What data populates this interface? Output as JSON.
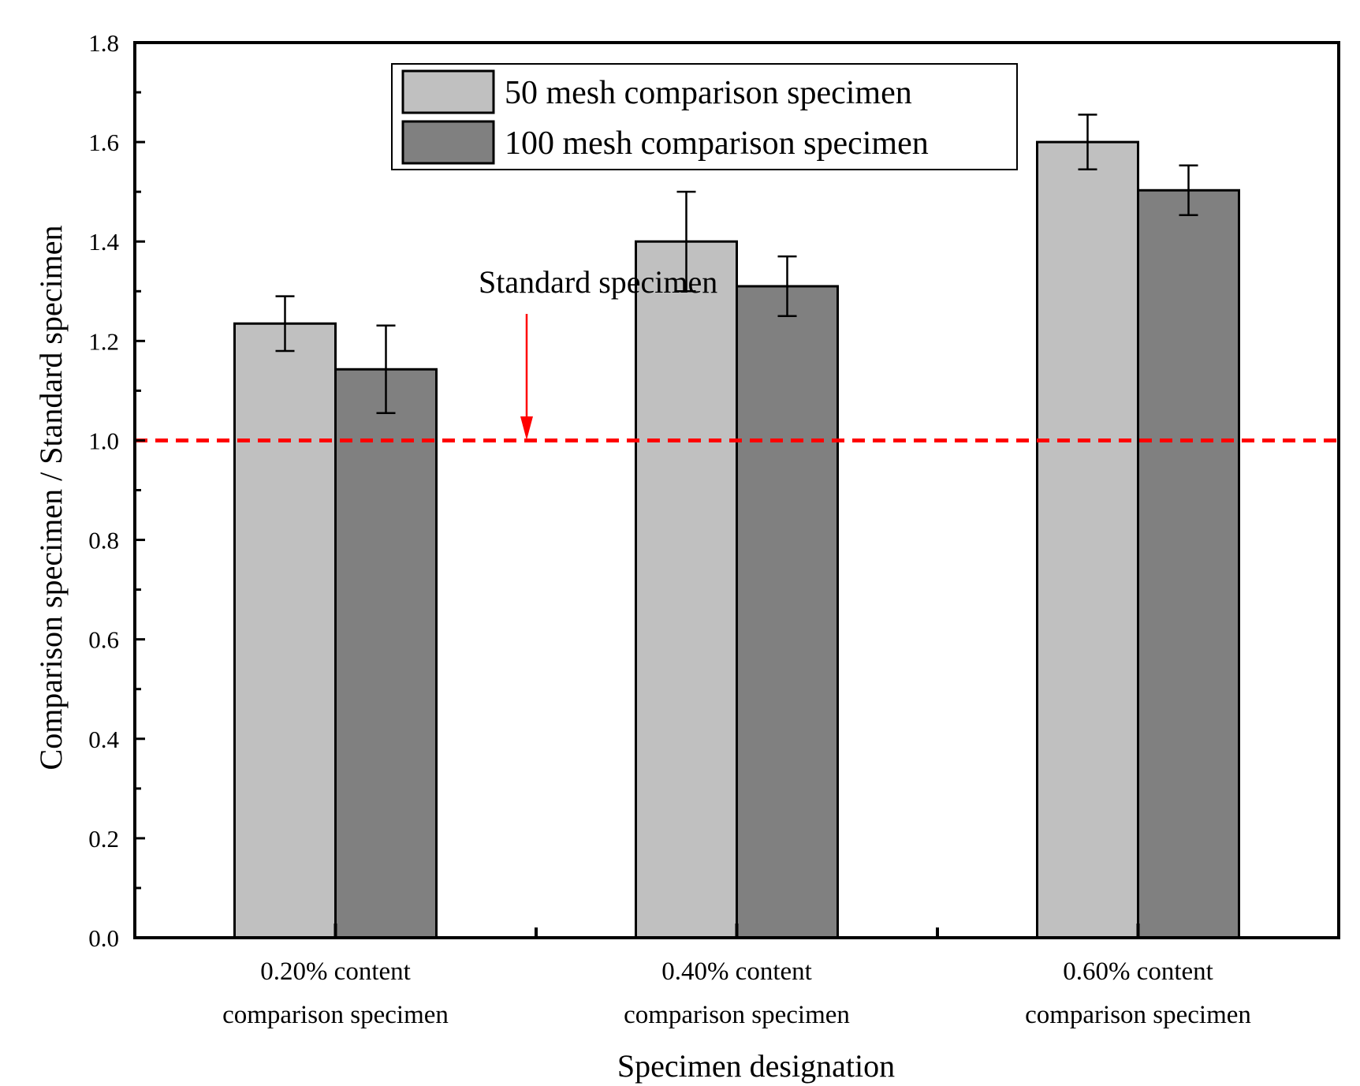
{
  "chart_data": {
    "type": "bar",
    "xlabel": "Specimen designation",
    "ylabel": "Comparison specimen / Standard specimen",
    "ylim": [
      0,
      1.8
    ],
    "yticks": [
      "0.0",
      "0.2",
      "0.4",
      "0.6",
      "0.8",
      "1.0",
      "1.2",
      "1.4",
      "1.6",
      "1.8"
    ],
    "categories": [
      [
        "0.20% content",
        "comparison specimen"
      ],
      [
        "0.40% content",
        "comparison specimen"
      ],
      [
        "0.60% content",
        "comparison specimen"
      ]
    ],
    "series": [
      {
        "name": "50 mesh comparison specimen",
        "color": "#c0c0c0",
        "values": [
          1.235,
          1.4,
          1.6
        ],
        "errors": [
          0.055,
          0.1,
          0.055
        ]
      },
      {
        "name": "100 mesh comparison specimen",
        "color": "#808080",
        "values": [
          1.143,
          1.31,
          1.503
        ],
        "errors": [
          0.088,
          0.06,
          0.05
        ]
      }
    ],
    "reference_line": {
      "value": 1.0,
      "label": "Standard specimen",
      "color": "#ff0000"
    },
    "legend_position": "top-center",
    "grid": false
  }
}
